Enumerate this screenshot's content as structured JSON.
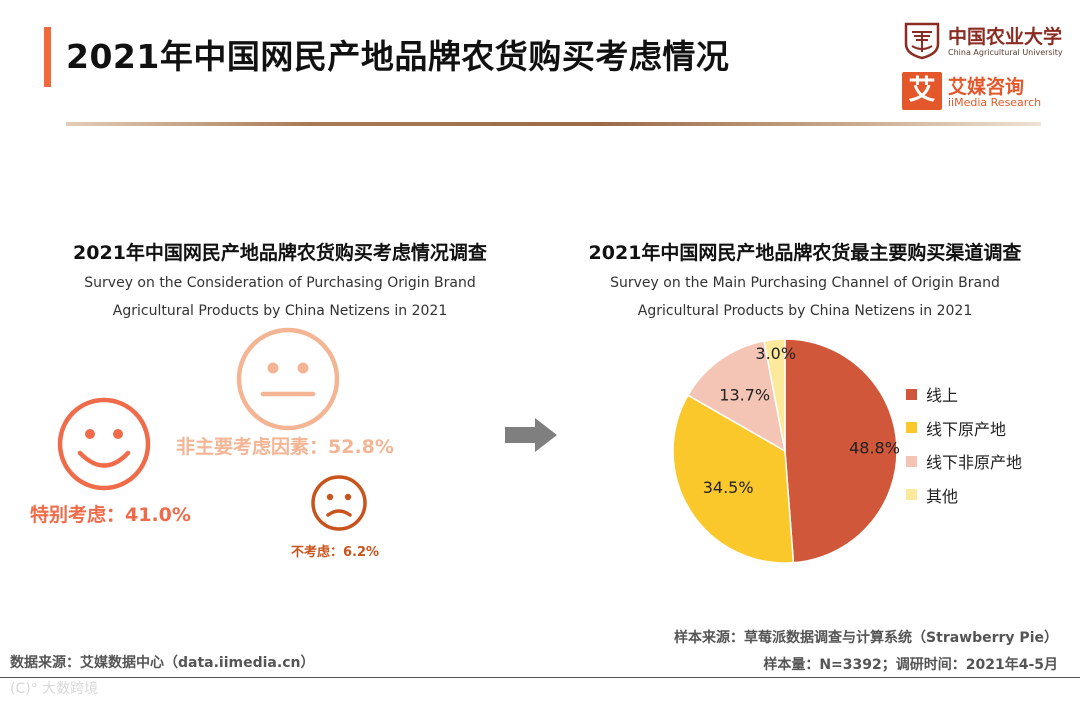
{
  "header": {
    "title": "2021年中国网民产地品牌农货购买考虑情况"
  },
  "logos": {
    "cau_name_cn": "中国农业大学",
    "cau_name_en": "China Agricultural University",
    "imedia_mark": "艾",
    "imedia_name_cn": "艾媒咨询",
    "imedia_name_en": "iiMedia Research"
  },
  "left_panel": {
    "title_cn": "2021年中国网民产地品牌农货购买考虑情况调查",
    "subtitle_en_line1": "Survey on the Consideration of Purchasing Origin Brand",
    "subtitle_en_line2": "Agricultural Products by China Netizens in 2021"
  },
  "right_panel": {
    "title_cn": "2021年中国网民产地品牌农货最主要购买渠道调查",
    "subtitle_en_line1": "Survey on the Main Purchasing Channel of Origin Brand",
    "subtitle_en_line2": "Agricultural Products by China Netizens in 2021"
  },
  "chart_data": [
    {
      "type": "icon-stat",
      "title": "2021年中国网民产地品牌农货购买考虑情况调查",
      "items": [
        {
          "label": "非主要考虑因素：52.8%",
          "category": "非主要考虑因素",
          "value": 52.8,
          "icon": "neutral-face-icon",
          "color": "#f4b595"
        },
        {
          "label": "特别考虑：41.0%",
          "category": "特别考虑",
          "value": 41.0,
          "icon": "smiley-face-icon",
          "color": "#ef6b4a"
        },
        {
          "label": "不考虑：6.2%",
          "category": "不考虑",
          "value": 6.2,
          "icon": "sad-face-icon",
          "color": "#c8531c"
        }
      ]
    },
    {
      "type": "pie",
      "title": "2021年中国网民产地品牌农货最主要购买渠道调查",
      "categories": [
        "线上",
        "线下原产地",
        "线下非原产地",
        "其他"
      ],
      "values": [
        48.8,
        34.5,
        13.7,
        3.0
      ],
      "labels": [
        "48.8%",
        "34.5%",
        "13.7%",
        "3.0%"
      ],
      "colors": [
        "#d0573a",
        "#fbc82c",
        "#f4c5b4",
        "#fde99b"
      ],
      "legend": "right"
    }
  ],
  "footer": {
    "source_right_line1": "样本来源：草莓派数据调查与计算系统（Strawberry Pie）",
    "source_right_line2": "样本量：N=3392；调研时间：2021年4-5月",
    "source_left": "数据来源：艾媒数据中心（data.iimedia.cn）",
    "watermark": "(C)° 大数跨境"
  },
  "colors": {
    "accent": "#f06a3b",
    "brand": "#e4572b"
  }
}
